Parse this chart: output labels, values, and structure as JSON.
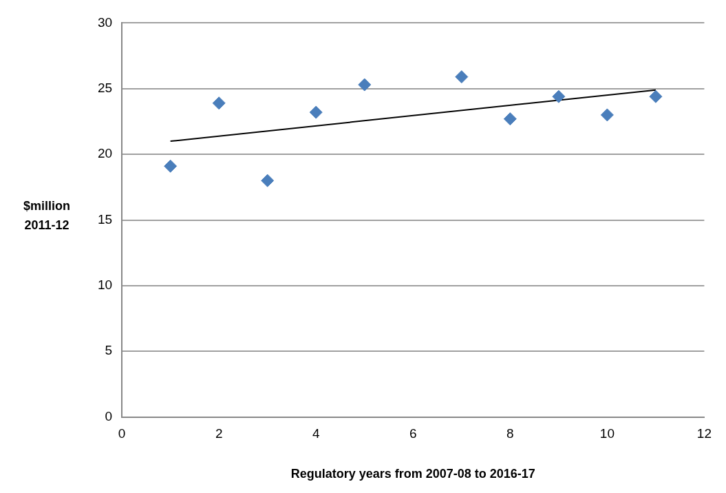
{
  "chart_data": {
    "type": "scatter",
    "xlabel": "Regulatory years from 2007-08 to 2016-17",
    "ylabel": "$million 2011-12",
    "series": [
      {
        "type": "scatter",
        "color": "#4a7ebb",
        "x": [
          1,
          2,
          3,
          4,
          5,
          7,
          8,
          9,
          10,
          11
        ],
        "values": [
          19.1,
          23.9,
          18.0,
          23.2,
          25.3,
          25.9,
          22.7,
          24.4,
          23.0,
          24.4
        ],
        "marker": "diamond"
      },
      {
        "type": "line",
        "color": "#000000",
        "x": [
          1,
          11
        ],
        "values": [
          21.0,
          24.9
        ],
        "marker": "none",
        "line_style": "solid"
      }
    ],
    "xlim": [
      0,
      12
    ],
    "xticks": [
      0,
      2,
      4,
      6,
      8,
      10,
      12
    ],
    "ylim": [
      0,
      30
    ],
    "yticks": [
      0,
      5,
      10,
      15,
      20,
      25,
      30
    ],
    "grid": "y",
    "legend": false
  }
}
